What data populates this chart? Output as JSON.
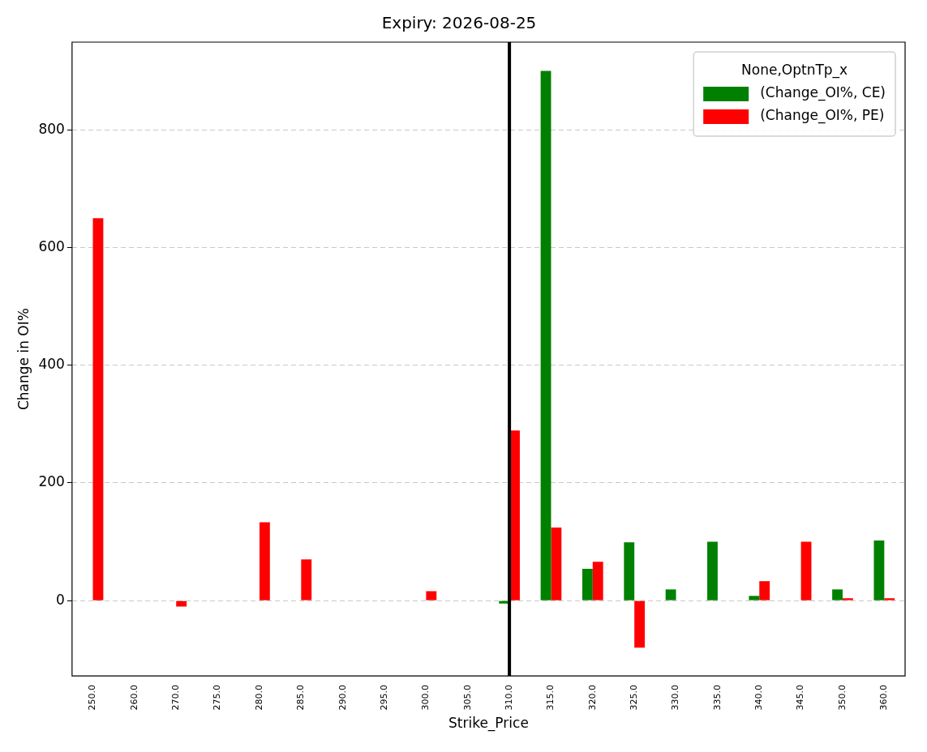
{
  "chart_data": {
    "type": "bar",
    "title": "Expiry: 2026-08-25",
    "xlabel": "Strike_Price",
    "ylabel": "Change in OI%",
    "legend_title": "None,OptnTp_x",
    "categories": [
      "250.0",
      "260.0",
      "270.0",
      "275.0",
      "280.0",
      "285.0",
      "290.0",
      "295.0",
      "300.0",
      "305.0",
      "310.0",
      "315.0",
      "320.0",
      "325.0",
      "330.0",
      "335.0",
      "340.0",
      "345.0",
      "350.0",
      "360.0"
    ],
    "series": [
      {
        "name": "(Change_OI%, CE)",
        "color": "#008000",
        "values": [
          null,
          null,
          null,
          null,
          null,
          null,
          null,
          null,
          null,
          null,
          -5,
          900,
          54,
          99,
          19,
          100,
          8,
          null,
          19,
          102
        ]
      },
      {
        "name": "(Change_OI%, PE)",
        "color": "#ff0000",
        "values": [
          650,
          null,
          -10,
          null,
          133,
          70,
          null,
          null,
          16,
          null,
          289,
          124,
          66,
          -80,
          null,
          null,
          33,
          100,
          4,
          4
        ]
      }
    ],
    "ylim": [
      -128,
      949
    ],
    "yticks": [
      0,
      200,
      400,
      600,
      800
    ],
    "grid": "y",
    "legend": "top right",
    "ref_lines": [
      {
        "axis": "x",
        "value": "310.0",
        "color": "#000000"
      }
    ]
  }
}
